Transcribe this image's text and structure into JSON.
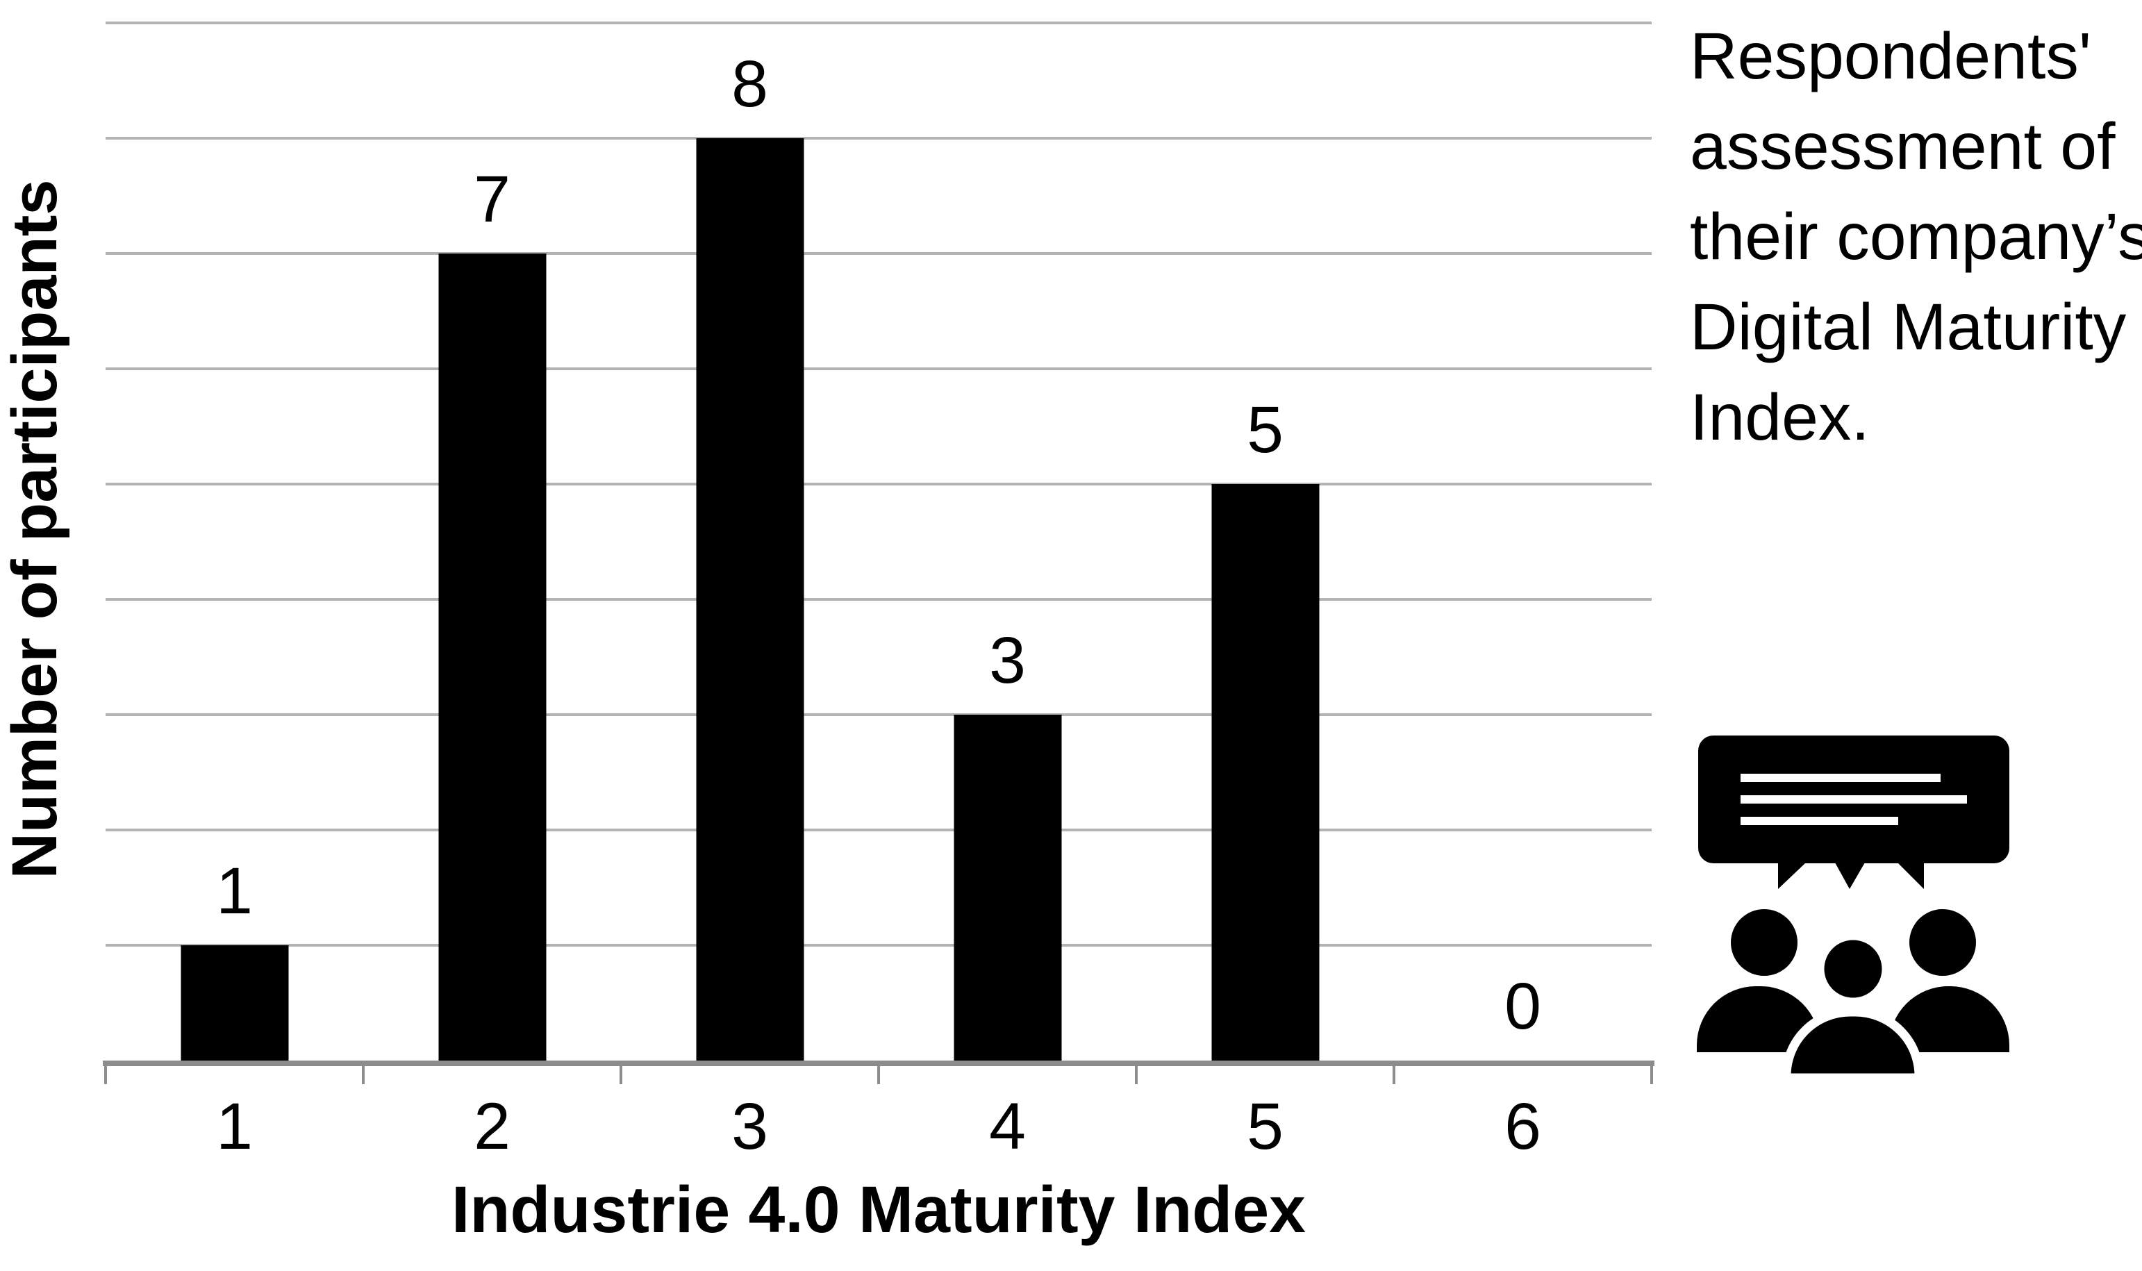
{
  "chart_data": {
    "type": "bar",
    "categories": [
      "1",
      "2",
      "3",
      "4",
      "5",
      "6"
    ],
    "values": [
      1,
      7,
      8,
      3,
      5,
      0
    ],
    "data_labels": [
      "1",
      "7",
      "8",
      "3",
      "5",
      "0"
    ],
    "xlabel": "Industrie 4.0 Maturity Index",
    "ylabel": "Number of participants",
    "ylim": [
      0,
      9
    ],
    "gridline_step": 1,
    "grid": "horizontal",
    "y_tick_labels_visible": false,
    "legend": "none",
    "bar_color": "#000000",
    "gridline_color": "#b3b3b3",
    "axis_color": "#8c8c8c",
    "text_color": "#000000",
    "background_color": "#ffffff"
  },
  "annotation": {
    "lines": [
      "Respondents'",
      "assessment of",
      "their company’s",
      "Digital Maturity",
      "Index."
    ]
  },
  "icon": {
    "name": "audience-speech-bubble-icon",
    "color": "#000000"
  }
}
